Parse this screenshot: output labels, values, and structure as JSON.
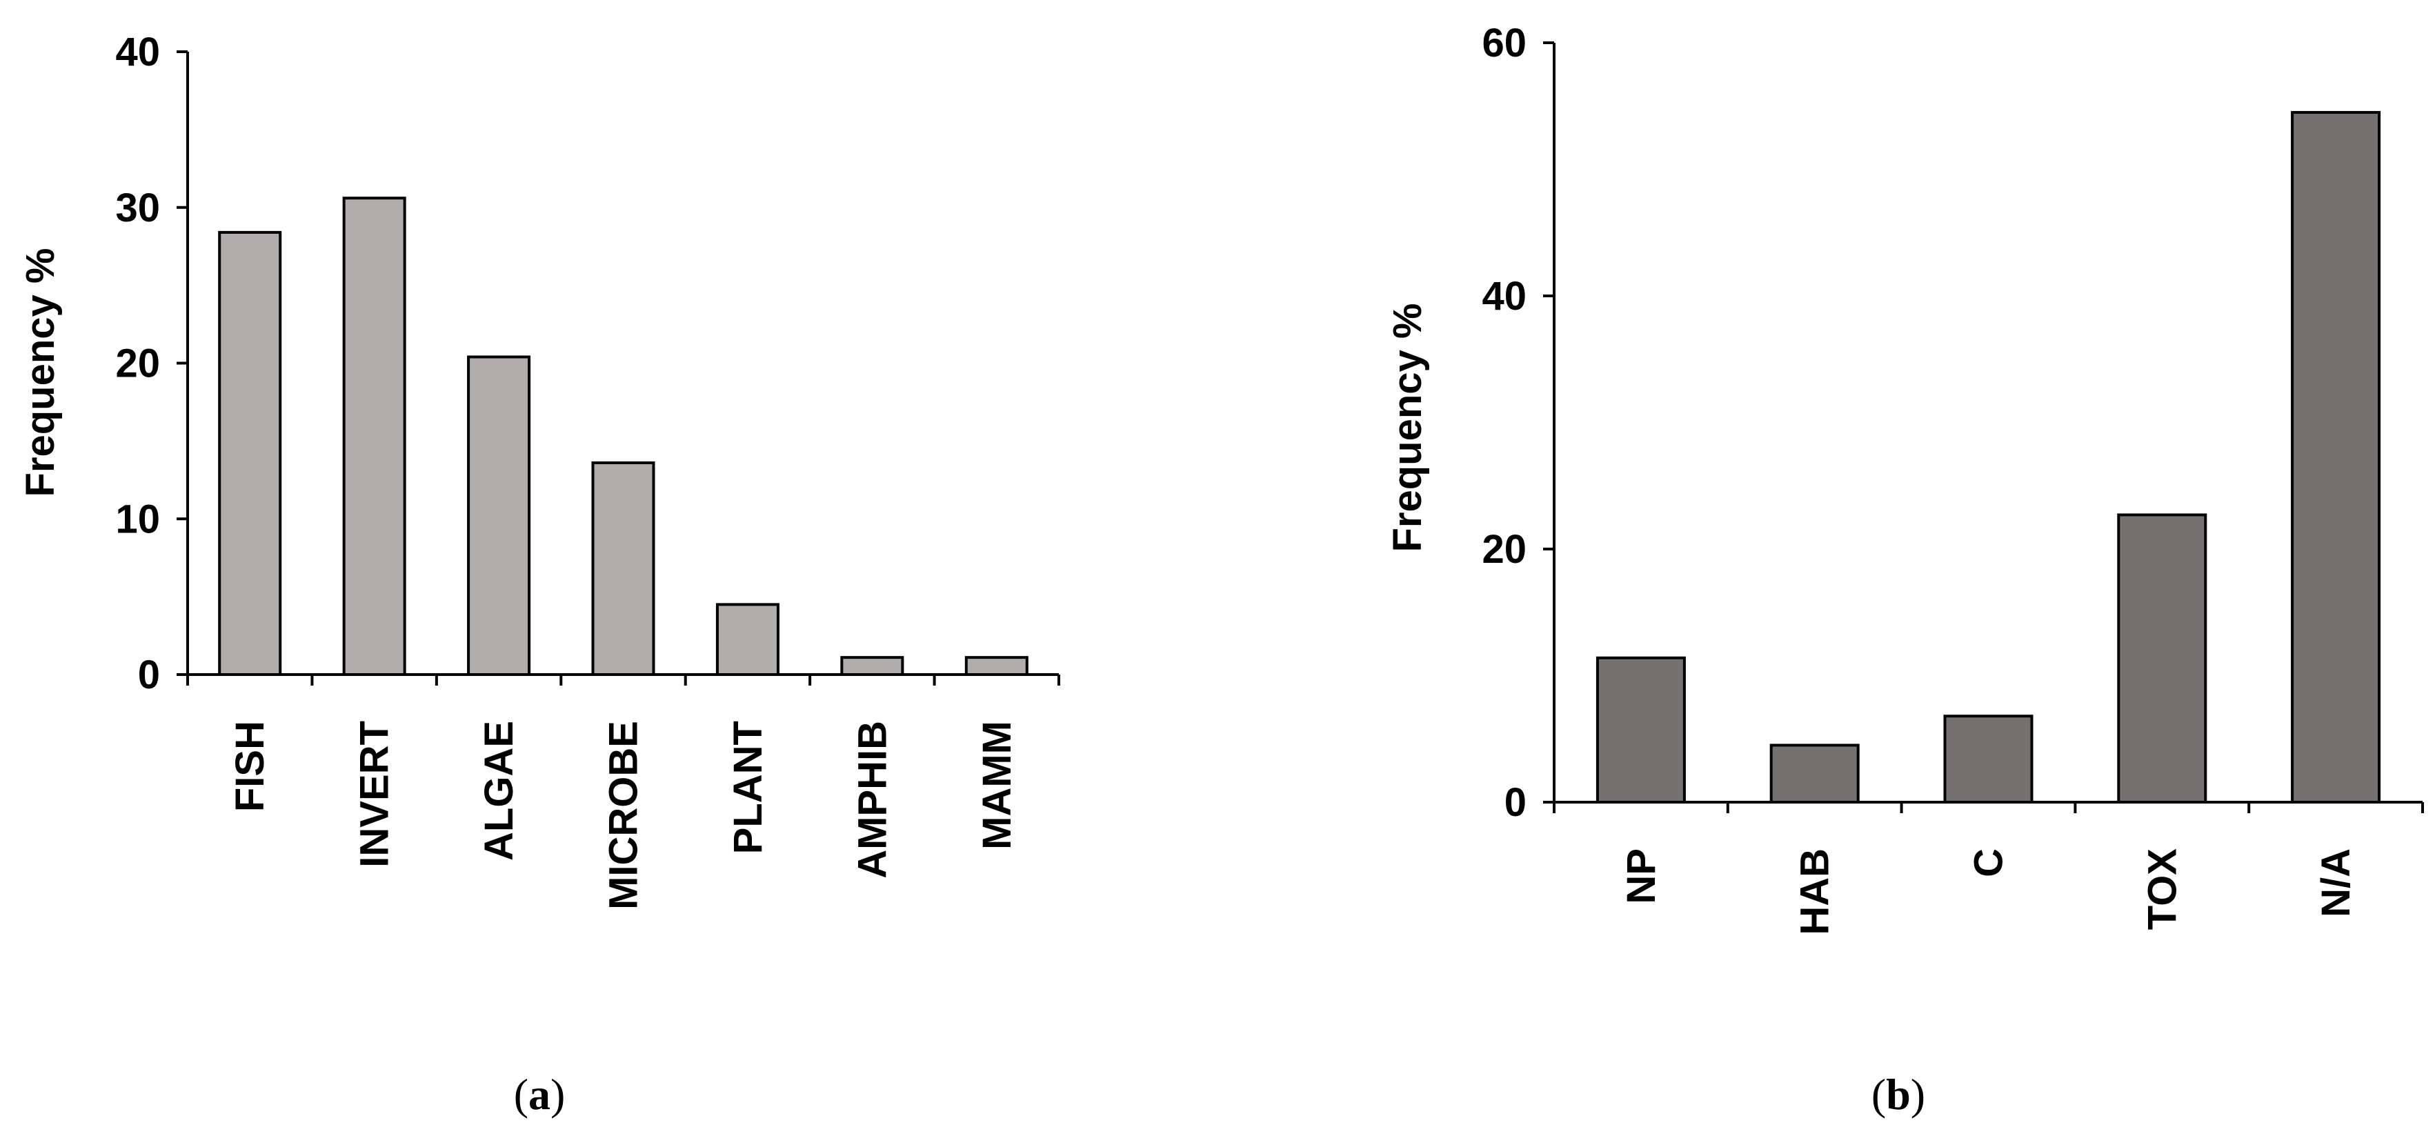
{
  "chart_data": [
    {
      "type": "bar",
      "panel_label": "a",
      "categories": [
        "FISH",
        "INVERT",
        "ALGAE",
        "MICROBE",
        "PLANT",
        "AMPHIB",
        "MAMM"
      ],
      "values": [
        28.4,
        30.6,
        20.4,
        13.6,
        4.5,
        1.1,
        1.1
      ],
      "ylabel": "Frequency %",
      "ylim": [
        0,
        40
      ],
      "yticks": [
        0,
        10,
        20,
        30,
        40
      ],
      "bar_color": "#b1adad",
      "grid": false
    },
    {
      "type": "bar",
      "panel_label": "b",
      "categories": [
        "NP",
        "HAB",
        "C",
        "TOX",
        "N/A"
      ],
      "values": [
        11.4,
        4.5,
        6.8,
        22.7,
        54.5
      ],
      "ylabel": "Frequency %",
      "ylim": [
        0,
        60
      ],
      "yticks": [
        0,
        20,
        40,
        60
      ],
      "bar_color": "#767171",
      "grid": false
    }
  ]
}
